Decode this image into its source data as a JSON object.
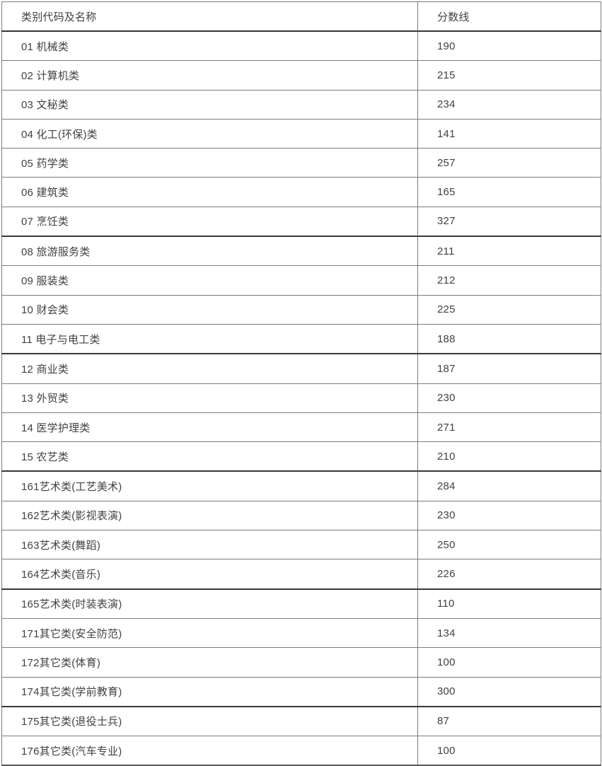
{
  "colors": {
    "text_color": "#3e4247",
    "border_inner": "#7d7d7d",
    "border_outer": "#565656",
    "border_thick": "#383838",
    "background": "#ffffff"
  },
  "table": {
    "columns": [
      "类别代码及名称",
      "分数线"
    ],
    "rows": [
      {
        "category": "01 机械类",
        "score": "190"
      },
      {
        "category": "02 计算机类",
        "score": "215"
      },
      {
        "category": "03 文秘类",
        "score": "234"
      },
      {
        "category": "04 化工(环保)类",
        "score": "141"
      },
      {
        "category": "05 药学类",
        "score": "257"
      },
      {
        "category": "06 建筑类",
        "score": "165"
      },
      {
        "category": "07 烹饪类",
        "score": "327"
      },
      {
        "category": "08 旅游服务类",
        "score": "211"
      },
      {
        "category": "09 服装类",
        "score": "212"
      },
      {
        "category": "10 财会类",
        "score": "225"
      },
      {
        "category": "11 电子与电工类",
        "score": "188"
      },
      {
        "category": "12 商业类",
        "score": "187"
      },
      {
        "category": "13 外贸类",
        "score": "230"
      },
      {
        "category": "14 医学护理类",
        "score": "271"
      },
      {
        "category": "15 农艺类",
        "score": "210"
      },
      {
        "category": "161艺术类(工艺美术)",
        "score": "284"
      },
      {
        "category": "162艺术类(影视表演)",
        "score": "230"
      },
      {
        "category": "163艺术类(舞蹈)",
        "score": "250"
      },
      {
        "category": "164艺术类(音乐)",
        "score": "226"
      },
      {
        "category": "165艺术类(时装表演)",
        "score": "110"
      },
      {
        "category": "171其它类(安全防范)",
        "score": "134"
      },
      {
        "category": "172其它类(体育)",
        "score": "100"
      },
      {
        "category": "174其它类(学前教育)",
        "score": "300"
      },
      {
        "category": "175其它类(退役士兵)",
        "score": "87"
      },
      {
        "category": "176其它类(汽车专业)",
        "score": "100"
      }
    ]
  }
}
